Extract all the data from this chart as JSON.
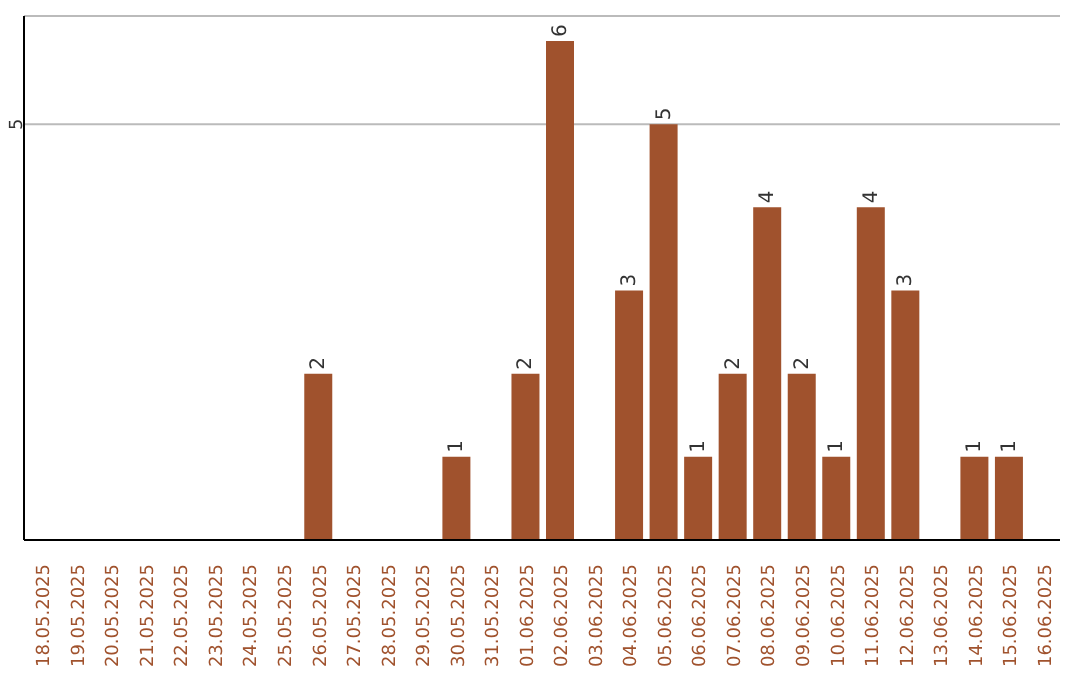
{
  "chart_data": {
    "type": "bar",
    "categories": [
      "18.05.2025",
      "19.05.2025",
      "20.05.2025",
      "21.05.2025",
      "22.05.2025",
      "23.05.2025",
      "24.05.2025",
      "25.05.2025",
      "26.05.2025",
      "27.05.2025",
      "28.05.2025",
      "29.05.2025",
      "30.05.2025",
      "31.05.2025",
      "01.06.2025",
      "02.06.2025",
      "03.06.2025",
      "04.06.2025",
      "05.06.2025",
      "06.06.2025",
      "07.06.2025",
      "08.06.2025",
      "09.06.2025",
      "10.06.2025",
      "11.06.2025",
      "12.06.2025",
      "13.06.2025",
      "14.06.2025",
      "15.06.2025",
      "16.06.2025"
    ],
    "values": [
      0,
      0,
      0,
      0,
      0,
      0,
      0,
      0,
      2,
      0,
      0,
      0,
      1,
      0,
      2,
      6,
      0,
      3,
      5,
      1,
      2,
      4,
      2,
      1,
      4,
      3,
      0,
      1,
      1,
      0
    ],
    "value_labels": [
      null,
      null,
      null,
      null,
      null,
      null,
      null,
      null,
      "2",
      null,
      null,
      null,
      "1",
      null,
      "2",
      "6",
      null,
      "3",
      "5",
      "1",
      "2",
      "4",
      "2",
      "1",
      "4",
      "3",
      null,
      "1",
      "1",
      null
    ],
    "color": "#a0522d",
    "ylim": [
      0,
      6.3
    ],
    "yticks": [
      5
    ],
    "grid": "y"
  }
}
